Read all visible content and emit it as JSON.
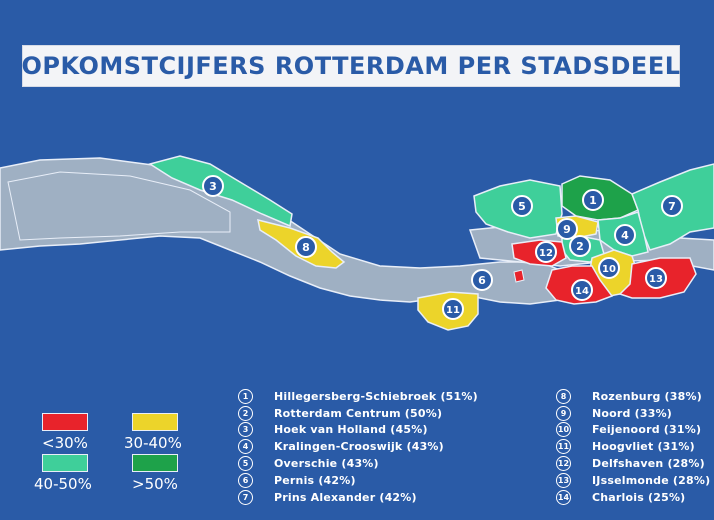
{
  "title": "OPKOMSTCIJFERS ROTTERDAM PER STADSDEEL",
  "colors": {
    "background": "#2a5ba7",
    "land": "#9fb0c3",
    "lt30": "#e8232b",
    "r30_40": "#ecd42a",
    "r40_50": "#3fcf9a",
    "gt50": "#1ea24a"
  },
  "legend": [
    {
      "label": "<30%",
      "color": "#e8232b"
    },
    {
      "label": "30-40%",
      "color": "#ecd42a"
    },
    {
      "label": "40-50%",
      "color": "#3fcf9a"
    },
    {
      "label": ">50%",
      "color": "#1ea24a"
    }
  ],
  "districts": [
    {
      "num": "1",
      "label": "Hillegersberg-Schiebroek (51%)",
      "turnout": 51
    },
    {
      "num": "2",
      "label": "Rotterdam Centrum (50%)",
      "turnout": 50
    },
    {
      "num": "3",
      "label": "Hoek van Holland (45%)",
      "turnout": 45
    },
    {
      "num": "4",
      "label": "Kralingen-Crooswijk (43%)",
      "turnout": 43
    },
    {
      "num": "5",
      "label": "Overschie (43%)",
      "turnout": 43
    },
    {
      "num": "6",
      "label": "Pernis (42%)",
      "turnout": 42
    },
    {
      "num": "7",
      "label": "Prins Alexander (42%)",
      "turnout": 42
    },
    {
      "num": "8",
      "label": "Rozenburg (38%)",
      "turnout": 38
    },
    {
      "num": "9",
      "label": "Noord (33%)",
      "turnout": 33
    },
    {
      "num": "10",
      "label": "Feijenoord (31%)",
      "turnout": 31
    },
    {
      "num": "11",
      "label": "Hoogvliet (31%)",
      "turnout": 31
    },
    {
      "num": "12",
      "label": "Delfshaven (28%)",
      "turnout": 28
    },
    {
      "num": "13",
      "label": "IJsselmonde (28%)",
      "turnout": 28
    },
    {
      "num": "14",
      "label": "Charlois (25%)",
      "turnout": 25
    }
  ],
  "map_markers": [
    "1",
    "2",
    "3",
    "4",
    "5",
    "6",
    "7",
    "8",
    "9",
    "10",
    "11",
    "12",
    "13",
    "14"
  ]
}
